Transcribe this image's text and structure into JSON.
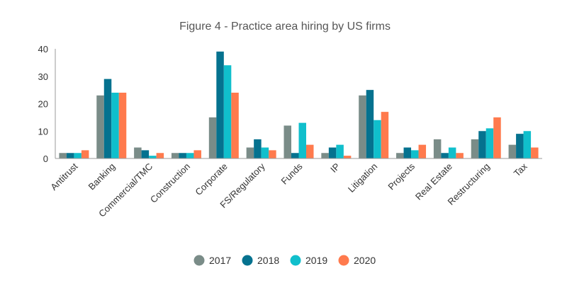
{
  "chart_data": {
    "type": "bar",
    "title": "Figure 4 - Practice area hiring by US firms",
    "xlabel": "",
    "ylabel": "",
    "ylim": [
      0,
      40
    ],
    "yticks": [
      0,
      10,
      20,
      30,
      40
    ],
    "grid": false,
    "legend_position": "bottom",
    "categories": [
      "Antitrust",
      "Banking",
      "Commercial/TMC",
      "Construction",
      "Corporate",
      "FS/Regulatory",
      "Funds",
      "IP",
      "Litigation",
      "Projects",
      "Real Estate",
      "Restructuring",
      "Tax"
    ],
    "series": [
      {
        "name": "2017",
        "color": "#7A8C88",
        "values": [
          2,
          23,
          4,
          2,
          15,
          4,
          12,
          2,
          23,
          2,
          7,
          7,
          5
        ]
      },
      {
        "name": "2018",
        "color": "#05728F",
        "values": [
          2,
          29,
          3,
          2,
          39,
          7,
          2,
          4,
          25,
          4,
          2,
          10,
          9
        ]
      },
      {
        "name": "2019",
        "color": "#10BFCC",
        "values": [
          2,
          24,
          1,
          2,
          34,
          4,
          13,
          5,
          14,
          3,
          4,
          11,
          10
        ]
      },
      {
        "name": "2020",
        "color": "#FF7A4D",
        "values": [
          3,
          24,
          2,
          3,
          24,
          3,
          5,
          1,
          17,
          5,
          2,
          15,
          4
        ]
      }
    ]
  }
}
